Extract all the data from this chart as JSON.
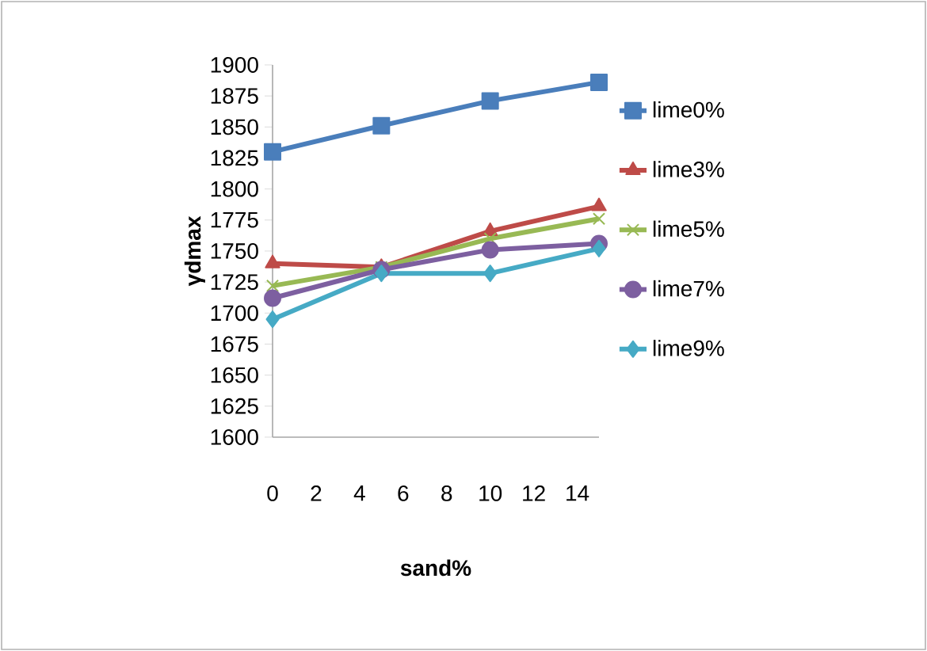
{
  "chart_data": {
    "type": "line",
    "xlabel": "sand%",
    "ylabel": "γdmax",
    "x": [
      0,
      5,
      10,
      15
    ],
    "series": [
      {
        "name": "lime0%",
        "color": "#4a7ebb",
        "marker": "square",
        "values": [
          1830,
          1851,
          1871,
          1886
        ]
      },
      {
        "name": "lime3%",
        "color": "#be4b48",
        "marker": "triangle",
        "values": [
          1740,
          1737,
          1766,
          1786
        ]
      },
      {
        "name": "lime5%",
        "color": "#98b954",
        "marker": "cross",
        "values": [
          1722,
          1737,
          1760,
          1776
        ]
      },
      {
        "name": "lime7%",
        "color": "#7d5fa0",
        "marker": "circle",
        "values": [
          1712,
          1735,
          1751,
          1756
        ]
      },
      {
        "name": "lime9%",
        "color": "#46aac5",
        "marker": "diamond",
        "values": [
          1695,
          1732,
          1732,
          1752
        ]
      }
    ],
    "xlim": [
      0,
      15
    ],
    "xticks": [
      0,
      2,
      4,
      6,
      8,
      10,
      12,
      14
    ],
    "ylim": [
      1600,
      1900
    ],
    "yticks": [
      1600,
      1625,
      1650,
      1675,
      1700,
      1725,
      1750,
      1775,
      1800,
      1825,
      1850,
      1875,
      1900
    ],
    "grid": false,
    "legend": "right",
    "line_style": "solid"
  }
}
